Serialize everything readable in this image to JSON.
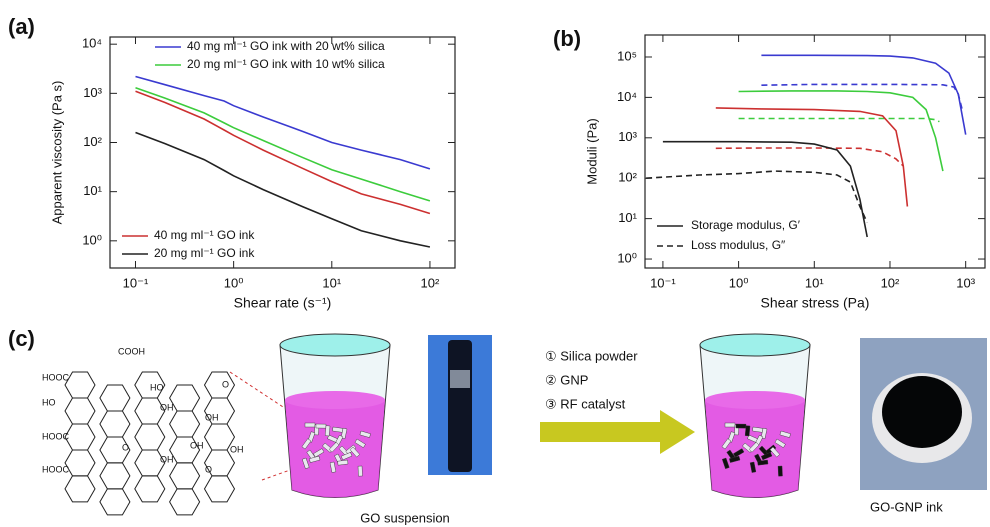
{
  "panel_labels": [
    "(a)",
    "(b)",
    "(c)"
  ],
  "chart_data": [
    {
      "type": "line",
      "log_x": true,
      "log_y": true,
      "x_label": "Shear rate (s⁻¹)",
      "y_label": "Apparent viscosity (Pa s)",
      "xlim": [
        0.055,
        180
      ],
      "ylim": [
        0.28,
        14000
      ],
      "xticks": [
        {
          "value": 0.1,
          "label": "10⁻¹"
        },
        {
          "value": 1,
          "label": "10⁰"
        },
        {
          "value": 10,
          "label": "10¹"
        },
        {
          "value": 100,
          "label": "10²"
        }
      ],
      "yticks": [
        {
          "value": 1,
          "label": "10⁰"
        },
        {
          "value": 10,
          "label": "10¹"
        },
        {
          "value": 100,
          "label": "10²"
        },
        {
          "value": 1000,
          "label": "10³"
        },
        {
          "value": 10000,
          "label": "10⁴"
        }
      ],
      "series": [
        {
          "name": "40 mg ml⁻¹ GO ink with 20 wt% silica",
          "color": "#3a3ad0",
          "legend_loc": "upper right",
          "x": [
            0.1,
            0.2,
            0.5,
            0.8,
            1,
            2,
            5,
            10,
            20,
            50,
            100
          ],
          "values": [
            2200,
            1500,
            900,
            700,
            560,
            330,
            170,
            100,
            70,
            45,
            29
          ]
        },
        {
          "name": "20 mg ml⁻¹ GO ink with 10 wt% silica",
          "color": "#3ccc3c",
          "legend_loc": "upper right",
          "x": [
            0.1,
            0.2,
            0.5,
            0.8,
            1,
            2,
            5,
            10,
            20,
            50,
            100
          ],
          "values": [
            1300,
            800,
            400,
            250,
            200,
            110,
            50,
            28,
            18,
            10,
            6.5
          ]
        },
        {
          "name": "40 mg ml⁻¹ GO ink",
          "color": "#cc3030",
          "legend_loc": "lower left",
          "x": [
            0.1,
            0.2,
            0.5,
            0.8,
            1,
            2,
            5,
            10,
            20,
            50,
            100
          ],
          "values": [
            1100,
            650,
            300,
            180,
            140,
            70,
            30,
            16,
            9,
            5.5,
            3.6
          ]
        },
        {
          "name": "20 mg ml⁻¹ GO ink",
          "color": "#222222",
          "legend_loc": "lower left",
          "x": [
            0.1,
            0.2,
            0.5,
            0.8,
            1,
            2,
            5,
            10,
            20,
            50,
            100
          ],
          "values": [
            160,
            95,
            45,
            27,
            21,
            11,
            5,
            2.8,
            1.6,
            1.0,
            0.75
          ]
        }
      ]
    },
    {
      "type": "line",
      "log_x": true,
      "log_y": true,
      "x_label": "Shear stress (Pa)",
      "y_label": "Moduli (Pa)",
      "xlim": [
        0.058,
        1800
      ],
      "ylim": [
        0.6,
        350000
      ],
      "xticks": [
        {
          "value": 0.1,
          "label": "10⁻¹"
        },
        {
          "value": 1,
          "label": "10⁰"
        },
        {
          "value": 10,
          "label": "10¹"
        },
        {
          "value": 100,
          "label": "10²"
        },
        {
          "value": 1000,
          "label": "10³"
        }
      ],
      "yticks": [
        {
          "value": 1,
          "label": "10⁰"
        },
        {
          "value": 10,
          "label": "10¹"
        },
        {
          "value": 100,
          "label": "10²"
        },
        {
          "value": 1000,
          "label": "10³"
        },
        {
          "value": 10000,
          "label": "10⁴"
        },
        {
          "value": 100000,
          "label": "10⁵"
        }
      ],
      "legend": [
        {
          "label": "Storage modulus, G′",
          "dash": false
        },
        {
          "label": "Loss modulus, G″",
          "dash": true
        }
      ],
      "series": [
        {
          "color": "#3a3ad0",
          "dash": false,
          "x": [
            2,
            10,
            50,
            100,
            200,
            400,
            600,
            800,
            1000
          ],
          "values": [
            110000,
            110000,
            108000,
            105000,
            95000,
            70000,
            40000,
            12000,
            1200
          ]
        },
        {
          "color": "#3a3ad0",
          "dash": true,
          "x": [
            2,
            10,
            100,
            500,
            700,
            800,
            900
          ],
          "values": [
            20000,
            21000,
            21000,
            20500,
            18000,
            12000,
            5000
          ]
        },
        {
          "color": "#3ccc3c",
          "dash": false,
          "x": [
            1,
            5,
            20,
            50,
            100,
            200,
            300,
            400,
            500
          ],
          "values": [
            14000,
            14500,
            14500,
            14000,
            13000,
            10000,
            5000,
            1000,
            150
          ]
        },
        {
          "color": "#3ccc3c",
          "dash": true,
          "x": [
            1,
            10,
            100,
            300,
            400,
            450
          ],
          "values": [
            3000,
            3000,
            3000,
            3000,
            2800,
            2500
          ]
        },
        {
          "color": "#cc3030",
          "dash": false,
          "x": [
            0.5,
            2,
            10,
            40,
            80,
            120,
            150,
            170
          ],
          "values": [
            5500,
            5200,
            5000,
            4500,
            3500,
            1500,
            200,
            20
          ]
        },
        {
          "color": "#cc3030",
          "dash": true,
          "x": [
            0.5,
            2,
            10,
            40,
            80,
            120,
            150
          ],
          "values": [
            550,
            560,
            560,
            550,
            450,
            300,
            200
          ]
        },
        {
          "color": "#222222",
          "dash": false,
          "x": [
            0.1,
            1,
            5,
            10,
            20,
            30,
            40,
            50
          ],
          "values": [
            800,
            800,
            780,
            700,
            500,
            200,
            30,
            3.5
          ]
        },
        {
          "color": "#222222",
          "dash": true,
          "x": [
            0.06,
            0.3,
            1,
            3,
            10,
            20,
            30,
            40,
            50
          ],
          "values": [
            100,
            120,
            130,
            150,
            140,
            120,
            80,
            20,
            8
          ]
        }
      ]
    }
  ],
  "diagram": {
    "structure_labels": [
      "COOH",
      "HOOC",
      "HO",
      "HOOC",
      "HOOC",
      "HO",
      "OH",
      "O",
      "OH",
      "O",
      "OH",
      "OH",
      "O",
      "OH"
    ],
    "steps": [
      "① Silica powder",
      "② GNP",
      "③ RF catalyst"
    ],
    "captions": [
      "GO suspension",
      "GO-GNP ink"
    ]
  }
}
